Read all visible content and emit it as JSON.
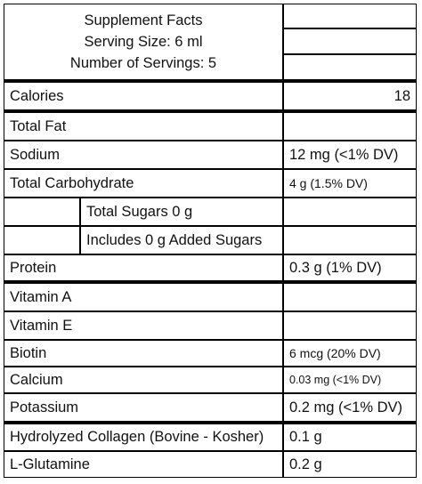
{
  "header": {
    "title": "Supplement Facts",
    "serving_size": "Serving Size: 6 ml",
    "servings": "Number of Servings: 5"
  },
  "calories": {
    "label": "Calories",
    "value": "18"
  },
  "rows": [
    {
      "label": "Total Fat",
      "value": ""
    },
    {
      "label": "Sodium",
      "value": "12 mg (<1% DV)"
    },
    {
      "label": "Total Carbohydrate",
      "value": "4 g (1.5% DV)"
    },
    {
      "label": "Total Sugars 0 g",
      "value": ""
    },
    {
      "label": "Includes 0 g Added Sugars",
      "value": ""
    },
    {
      "label": "Protein",
      "value": "0.3 g (1% DV)"
    },
    {
      "label": "Vitamin A",
      "value": ""
    },
    {
      "label": "Vitamin E",
      "value": ""
    },
    {
      "label": "Biotin",
      "value": "6 mcg (20% DV)"
    },
    {
      "label": "Calcium",
      "value": "0.03 mg (<1% DV)"
    },
    {
      "label": "Potassium",
      "value": "0.2 mg (<1% DV)"
    },
    {
      "label": "Hydrolyzed Collagen (Bovine - Kosher)",
      "value": "0.1 g"
    },
    {
      "label": "L-Glutamine",
      "value": "0.2 g"
    }
  ]
}
